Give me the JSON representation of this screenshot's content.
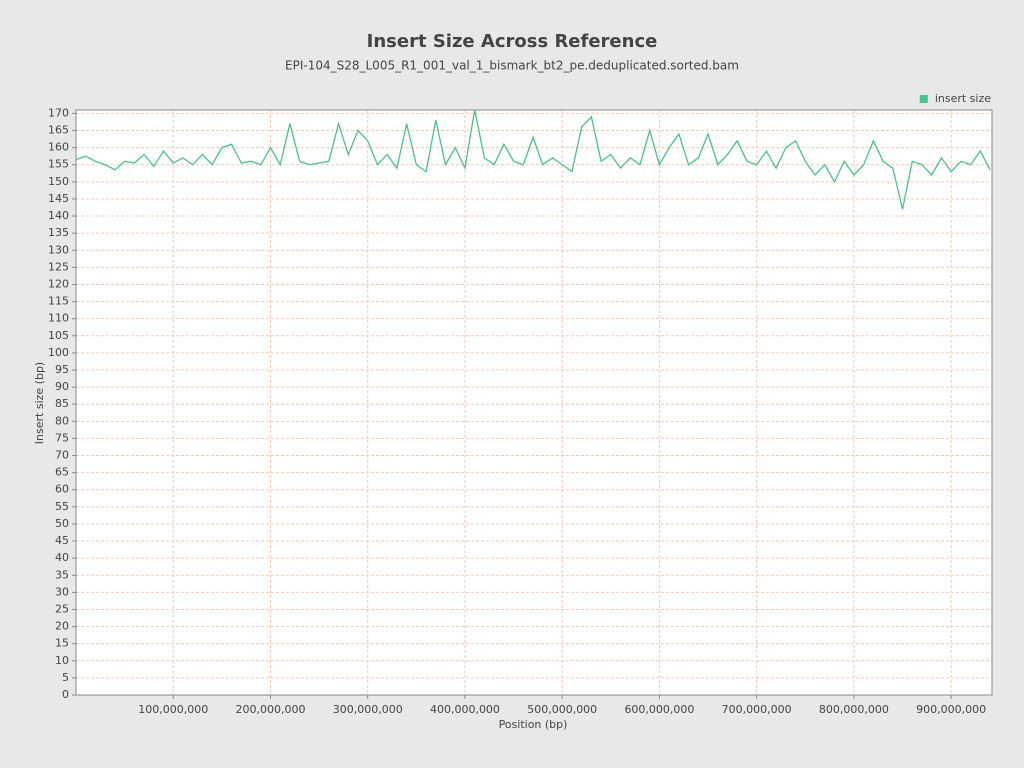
{
  "chart_data": {
    "type": "line",
    "title": "Insert Size Across Reference",
    "subtitle": "EPI-104_S28_L005_R1_001_val_1_bismark_bt2_pe.deduplicated.sorted.bam",
    "x_label": "Position (bp)",
    "y_label": "Insert size (bp)",
    "legend_position": "top-right",
    "grid": true,
    "x": [
      0,
      10000000,
      20000000,
      30000000,
      40000000,
      50000000,
      60000000,
      70000000,
      80000000,
      90000000,
      100000000,
      110000000,
      120000000,
      130000000,
      140000000,
      150000000,
      160000000,
      170000000,
      180000000,
      190000000,
      200000000,
      210000000,
      220000000,
      230000000,
      240000000,
      250000000,
      260000000,
      270000000,
      280000000,
      290000000,
      300000000,
      310000000,
      320000000,
      330000000,
      340000000,
      350000000,
      360000000,
      370000000,
      380000000,
      390000000,
      400000000,
      410000000,
      420000000,
      430000000,
      440000000,
      450000000,
      460000000,
      470000000,
      480000000,
      490000000,
      500000000,
      510000000,
      520000000,
      530000000,
      540000000,
      550000000,
      560000000,
      570000000,
      580000000,
      590000000,
      600000000,
      610000000,
      620000000,
      630000000,
      640000000,
      650000000,
      660000000,
      670000000,
      680000000,
      690000000,
      700000000,
      710000000,
      720000000,
      730000000,
      740000000,
      750000000,
      760000000,
      770000000,
      780000000,
      790000000,
      800000000,
      810000000,
      820000000,
      830000000,
      840000000,
      850000000,
      860000000,
      870000000,
      880000000,
      890000000,
      900000000,
      910000000,
      920000000,
      930000000,
      940000000
    ],
    "series": [
      {
        "name": "insert size",
        "color": "#4cc08a",
        "values": [
          156.5,
          157.5,
          156,
          155,
          153.5,
          156,
          155.5,
          158,
          154.5,
          159,
          155.5,
          157,
          155,
          158,
          155,
          160,
          161,
          155.5,
          156,
          155,
          160,
          155,
          167,
          156,
          155,
          155.5,
          156,
          167,
          158,
          165,
          162,
          155,
          158,
          154,
          167,
          155,
          153,
          168,
          155,
          160,
          154,
          171,
          157,
          155,
          161,
          156,
          155,
          163,
          155,
          157,
          155,
          153,
          166,
          169,
          156,
          158,
          154,
          157,
          155,
          165,
          155,
          160,
          164,
          155,
          157,
          164,
          155,
          158,
          162,
          156,
          155,
          159,
          154,
          160,
          162,
          156,
          152,
          155,
          150,
          156,
          152,
          155,
          162,
          156,
          154,
          142,
          156,
          155,
          152,
          157,
          153,
          156,
          155,
          159,
          153.5
        ]
      }
    ],
    "xlim": [
      0,
      942000000
    ],
    "ylim": [
      0,
      171
    ],
    "xticks": [
      {
        "value": 100000000,
        "label": "100,000,000"
      },
      {
        "value": 200000000,
        "label": "200,000,000"
      },
      {
        "value": 300000000,
        "label": "300,000,000"
      },
      {
        "value": 400000000,
        "label": "400,000,000"
      },
      {
        "value": 500000000,
        "label": "500,000,000"
      },
      {
        "value": 600000000,
        "label": "600,000,000"
      },
      {
        "value": 700000000,
        "label": "700,000,000"
      },
      {
        "value": 800000000,
        "label": "800,000,000"
      },
      {
        "value": 900000000,
        "label": "900,000,000"
      }
    ],
    "yticks": [
      0,
      5,
      10,
      15,
      20,
      25,
      30,
      35,
      40,
      45,
      50,
      55,
      60,
      65,
      70,
      75,
      80,
      85,
      90,
      95,
      100,
      105,
      110,
      115,
      120,
      125,
      130,
      135,
      140,
      145,
      150,
      155,
      160,
      165,
      170
    ]
  }
}
